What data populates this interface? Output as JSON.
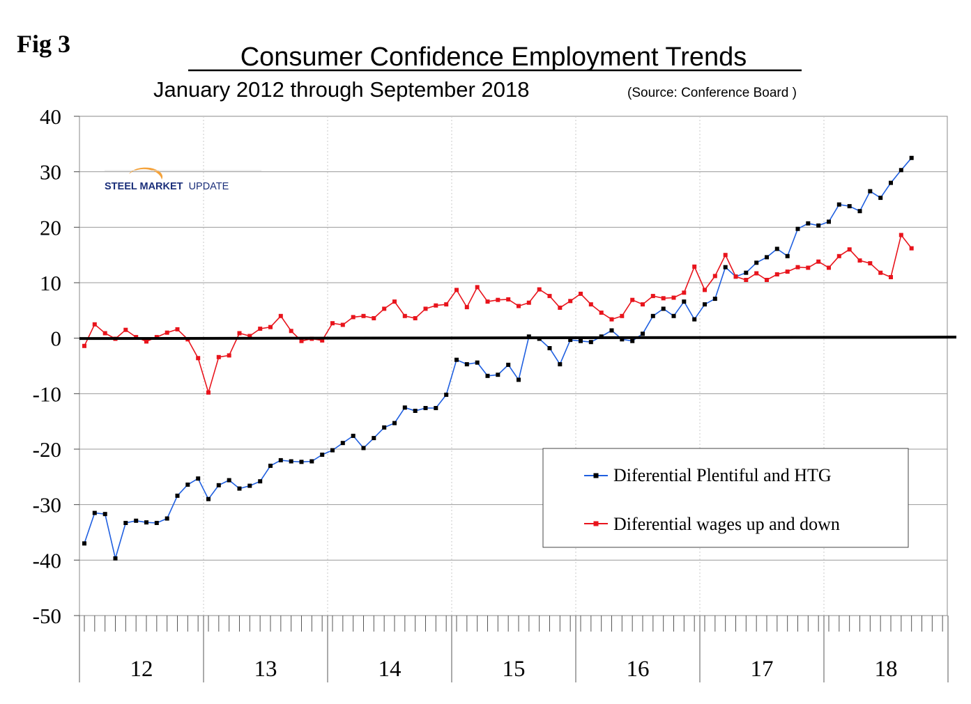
{
  "figure_label": "Fig 3",
  "logo": {
    "text_bold": "STEEL MARKET",
    "text_light": "UPDATE"
  },
  "chart_data": {
    "type": "line",
    "title": "Consumer Confidence Employment Trends",
    "subtitle": "January 2012 through September 2018",
    "source": "(Source: Conference Board )",
    "xlabel": "",
    "ylabel": "",
    "ylim": [
      -50,
      40
    ],
    "yticks": [
      40,
      30,
      20,
      10,
      0,
      -10,
      -20,
      -30,
      -40,
      -50
    ],
    "ytick_labels": [
      "40",
      "30",
      "20",
      "10",
      "0",
      "-10",
      "-20",
      "-30",
      "-40",
      "-50"
    ],
    "year_labels": [
      "12",
      "13",
      "14",
      "15",
      "16",
      "17",
      "18"
    ],
    "months_per_year": 12,
    "legend_position": "lower-right",
    "grid": true,
    "series": [
      {
        "name": "Diferential Plentiful and HTG",
        "color": "#1f5fe0",
        "values": [
          -37,
          -31.5,
          -31.7,
          -39.7,
          -33.3,
          -32.9,
          -33.2,
          -33.3,
          -32.5,
          -28.4,
          -26.4,
          -25.3,
          -29.0,
          -26.5,
          -25.6,
          -27.1,
          -26.6,
          -25.8,
          -23.0,
          -22.0,
          -22.2,
          -22.3,
          -22.2,
          -21.0,
          -20.2,
          -18.9,
          -17.6,
          -19.8,
          -18.0,
          -16.1,
          -15.3,
          -12.5,
          -13.1,
          -12.6,
          -12.6,
          -10.2,
          -3.9,
          -4.7,
          -4.4,
          -6.8,
          -6.6,
          -4.8,
          -7.5,
          0.3,
          -0.1,
          -1.8,
          -4.7,
          -0.3,
          -0.5,
          -0.7,
          0.3,
          1.4,
          -0.2,
          -0.5,
          0.8,
          4.0,
          5.3,
          4.0,
          6.6,
          3.4,
          6.1,
          7.1,
          12.8,
          11.1,
          11.8,
          13.6,
          14.6,
          16.1,
          14.8,
          19.7,
          20.7,
          20.3,
          21.0,
          24.1,
          23.8,
          22.9,
          26.5,
          25.3,
          28.0,
          30.3,
          32.5
        ]
      },
      {
        "name": "Diferential wages up and down",
        "color": "#e8141c",
        "values": [
          -1.4,
          2.5,
          0.9,
          -0.1,
          1.5,
          0.2,
          -0.6,
          0.2,
          1.0,
          1.6,
          -0.2,
          -3.6,
          -9.8,
          -3.4,
          -3.1,
          0.9,
          0.4,
          1.7,
          2.0,
          4.0,
          1.3,
          -0.5,
          -0.1,
          -0.4,
          2.7,
          2.4,
          3.8,
          4.0,
          3.6,
          5.3,
          6.6,
          4.0,
          3.6,
          5.3,
          5.9,
          6.1,
          8.7,
          5.6,
          9.2,
          6.6,
          6.9,
          7.0,
          5.8,
          6.4,
          8.8,
          7.6,
          5.5,
          6.7,
          8.0,
          6.1,
          4.6,
          3.4,
          4.0,
          6.9,
          6.1,
          7.6,
          7.2,
          7.3,
          8.2,
          12.9,
          8.7,
          11.2,
          15.0,
          11.1,
          10.5,
          11.7,
          10.5,
          11.5,
          12.0,
          12.8,
          12.7,
          13.8,
          12.7,
          14.8,
          16.0,
          14.0,
          13.5,
          11.8,
          11.0,
          18.6,
          16.2
        ]
      }
    ]
  }
}
